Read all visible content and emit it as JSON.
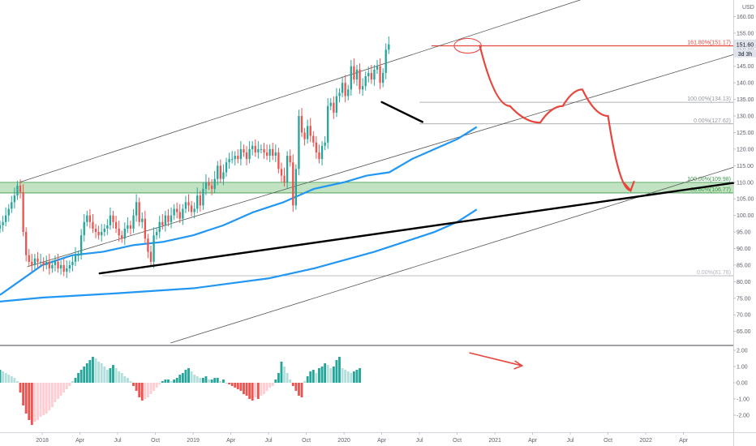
{
  "chart_data": {
    "type": "candlestick",
    "currency": "USD",
    "last_price": "151.60",
    "countdown": "3d 3h",
    "price_axis_ticks": [
      "160.00",
      "155.00",
      "150.00",
      "145.00",
      "140.00",
      "135.00",
      "130.00",
      "125.00",
      "120.00",
      "115.00",
      "110.00",
      "105.00",
      "100.00",
      "95.00",
      "90.00",
      "85.00",
      "80.00",
      "75.00",
      "70.00",
      "65.00"
    ],
    "osc_axis_ticks": [
      "2.00",
      "1.00",
      "0.00",
      "-1.00",
      "-2.00"
    ],
    "time_axis_ticks": [
      "2018",
      "Apr",
      "Jul",
      "Oct",
      "2019",
      "Apr",
      "Jul",
      "Oct",
      "2020",
      "Apr",
      "Jul",
      "Oct",
      "2021",
      "Apr",
      "Jul",
      "Oct",
      "2022",
      "Apr"
    ],
    "time_axis_tick_values": [
      2018.0,
      2018.25,
      2018.5,
      2018.75,
      2019.0,
      2019.25,
      2019.5,
      2019.75,
      2020.0,
      2020.25,
      2020.5,
      2020.75,
      2021.0,
      2021.25,
      2021.5,
      2021.75,
      2022.0,
      2022.25
    ],
    "x_range": [
      2017.72,
      2022.58
    ],
    "y_range": [
      61,
      165
    ],
    "osc_range": [
      -3,
      2.2
    ],
    "fib_levels": [
      {
        "label": "161.80%(151.17)",
        "value": 151.17,
        "color": "#e8453c",
        "x0": 2020.58
      },
      {
        "label": "100.00%(134.13)",
        "value": 134.13,
        "color": "#9598a1",
        "x0": 2020.5
      },
      {
        "label": "0.00%(127.62)",
        "value": 127.62,
        "color": "#9598a1",
        "x0": 2020.5
      },
      {
        "label": "100.00%(109.98)",
        "value": 109.98,
        "color": "#3a9a48",
        "x0": 2017.72
      },
      {
        "label": "88.60%(106.77)",
        "value": 106.77,
        "color": "#3a9a48",
        "x0": 2017.72
      },
      {
        "label": "0.00%(81.78)",
        "value": 81.78,
        "color": "#b2b5be",
        "x0": 2018.4
      }
    ],
    "support_zone": {
      "from": 106.77,
      "to": 109.98,
      "color": "#4caf50"
    },
    "candles": {
      "start": 2017.72,
      "step": 0.01923,
      "closes": [
        97,
        98,
        100,
        102,
        104,
        106,
        109,
        107,
        95,
        88,
        86,
        85,
        87,
        86,
        86,
        85,
        86,
        84,
        85,
        86,
        84,
        85,
        83,
        84,
        85,
        86,
        88,
        88,
        94,
        98,
        100,
        98,
        96,
        95,
        94,
        95,
        96,
        97,
        100,
        98,
        96,
        94,
        93,
        96,
        97,
        96,
        100,
        104,
        98,
        99,
        93,
        89,
        86,
        94,
        95,
        98,
        97,
        100,
        98,
        100,
        102,
        101,
        99,
        102,
        104,
        103,
        101,
        102,
        106,
        103,
        108,
        110,
        109,
        108,
        111,
        115,
        111,
        113,
        116,
        117,
        117,
        118,
        117,
        120,
        119,
        117,
        120,
        121,
        119,
        120,
        120,
        119,
        118,
        120,
        118,
        119,
        114,
        112,
        110,
        118,
        116,
        103,
        114,
        130,
        125,
        123,
        127,
        124,
        122,
        119,
        117,
        121,
        122,
        133,
        134,
        131,
        136,
        137,
        140,
        136,
        138,
        145,
        141,
        144,
        138,
        139,
        142,
        143,
        141,
        144,
        145,
        140,
        143,
        150,
        151.6
      ],
      "up_color": "#26a69a",
      "down_color": "#ef5350"
    },
    "ma_short": {
      "color": "#2196f3",
      "points": [
        [
          2017.72,
          76
        ],
        [
          2018.0,
          85
        ],
        [
          2018.2,
          88
        ],
        [
          2018.4,
          89
        ],
        [
          2018.6,
          91
        ],
        [
          2018.8,
          92
        ],
        [
          2019.0,
          94
        ],
        [
          2019.2,
          97
        ],
        [
          2019.4,
          101
        ],
        [
          2019.6,
          104
        ],
        [
          2019.8,
          108
        ],
        [
          2020.0,
          110
        ],
        [
          2020.15,
          112
        ],
        [
          2020.3,
          113
        ],
        [
          2020.45,
          117
        ],
        [
          2020.6,
          120
        ],
        [
          2020.75,
          123
        ],
        [
          2020.88,
          126.7
        ]
      ]
    },
    "ma_long": {
      "color": "#2196f3",
      "points": [
        [
          2017.72,
          74
        ],
        [
          2018.0,
          75.2
        ],
        [
          2018.5,
          76.5
        ],
        [
          2019.0,
          78
        ],
        [
          2019.5,
          81
        ],
        [
          2019.8,
          84
        ],
        [
          2020.0,
          86.5
        ],
        [
          2020.2,
          89
        ],
        [
          2020.4,
          92
        ],
        [
          2020.6,
          95
        ],
        [
          2020.75,
          98
        ],
        [
          2020.88,
          101.8
        ]
      ]
    },
    "trendlines": [
      {
        "points": [
          [
            2018.38,
            82.5
          ],
          [
            2022.58,
            109.8
          ]
        ],
        "color": "#000000",
        "width": 2.4
      },
      {
        "points": [
          [
            2020.25,
            134.2
          ],
          [
            2020.52,
            128.2
          ]
        ],
        "color": "#000000",
        "width": 2.4
      },
      {
        "points": [
          [
            2017.85,
            110
          ],
          [
            2021.7,
            167
          ]
        ],
        "color": "#555555",
        "width": 0.8
      },
      {
        "points": [
          [
            2017.9,
            84.5
          ],
          [
            2022.58,
            148.5
          ]
        ],
        "color": "#555555",
        "width": 0.8
      },
      {
        "points": [
          [
            2018.85,
            61.5
          ],
          [
            2022.58,
            114.5
          ]
        ],
        "color": "#555555",
        "width": 0.8
      }
    ],
    "projection": {
      "points": [
        [
          2020.9,
          151.2
        ],
        [
          2021.1,
          133
        ],
        [
          2021.3,
          128
        ],
        [
          2021.45,
          133
        ],
        [
          2021.58,
          138
        ],
        [
          2021.75,
          130
        ],
        [
          2021.9,
          107.5
        ]
      ],
      "color": "#e8453c"
    },
    "highlight_ellipse": {
      "cx": 2020.82,
      "cy": 151.17,
      "rx": 0.09,
      "ry": 2.2,
      "color": "#e8453c"
    },
    "oscillator": {
      "values": [
        0.8,
        0.7,
        0.6,
        0.5,
        0.4,
        0.3,
        0.1,
        -0.6,
        -1.4,
        -1.9,
        -2.3,
        -2.6,
        -2.4,
        -2.3,
        -2.1,
        -2.0,
        -1.9,
        -1.7,
        -1.5,
        -1.2,
        -1.0,
        -0.8,
        -0.6,
        -0.4,
        -0.2,
        0.1,
        0.3,
        0.6,
        0.8,
        1.0,
        1.2,
        1.4,
        1.6,
        1.5,
        1.3,
        1.2,
        1.0,
        0.8,
        0.9,
        1.1,
        0.9,
        0.7,
        0.6,
        0.4,
        0.3,
        0.1,
        -0.2,
        -0.5,
        -0.9,
        -1.1,
        -1.0,
        -0.9,
        -0.7,
        -0.5,
        -0.3,
        -0.1,
        0.1,
        0.2,
        0.2,
        0.1,
        0.2,
        0.3,
        0.5,
        0.6,
        0.8,
        0.9,
        0.7,
        0.5,
        0.4,
        0.3,
        0.3,
        0.4,
        0.2,
        0.2,
        0.3,
        0.3,
        0.1,
        0.2,
        0.0,
        -0.1,
        -0.2,
        -0.3,
        -0.4,
        -0.5,
        -0.7,
        -0.8,
        -1.0,
        -1.1,
        -0.9,
        -1.0,
        -0.8,
        -0.7,
        -0.5,
        -0.3,
        -0.2,
        0.2,
        0.6,
        1.3,
        1.0,
        0.6,
        0.2,
        -0.2,
        -0.5,
        -0.8,
        -0.9,
        0.1,
        0.4,
        0.7,
        0.8,
        0.6,
        0.9,
        1.0,
        1.2,
        1.1,
        0.9,
        1.0,
        1.4,
        1.6,
        0.9,
        0.8,
        0.7,
        0.6,
        0.7,
        0.8,
        0.9
      ],
      "pos_strong": "#26a69a",
      "pos_weak": "#b2dfdb",
      "neg_strong": "#ef5350",
      "neg_weak": "#ffcdd2"
    },
    "divergence_arrow": {
      "points": [
        [
          2020.83,
          1.85
        ],
        [
          2021.18,
          1.05
        ]
      ],
      "color": "#e8453c"
    }
  }
}
